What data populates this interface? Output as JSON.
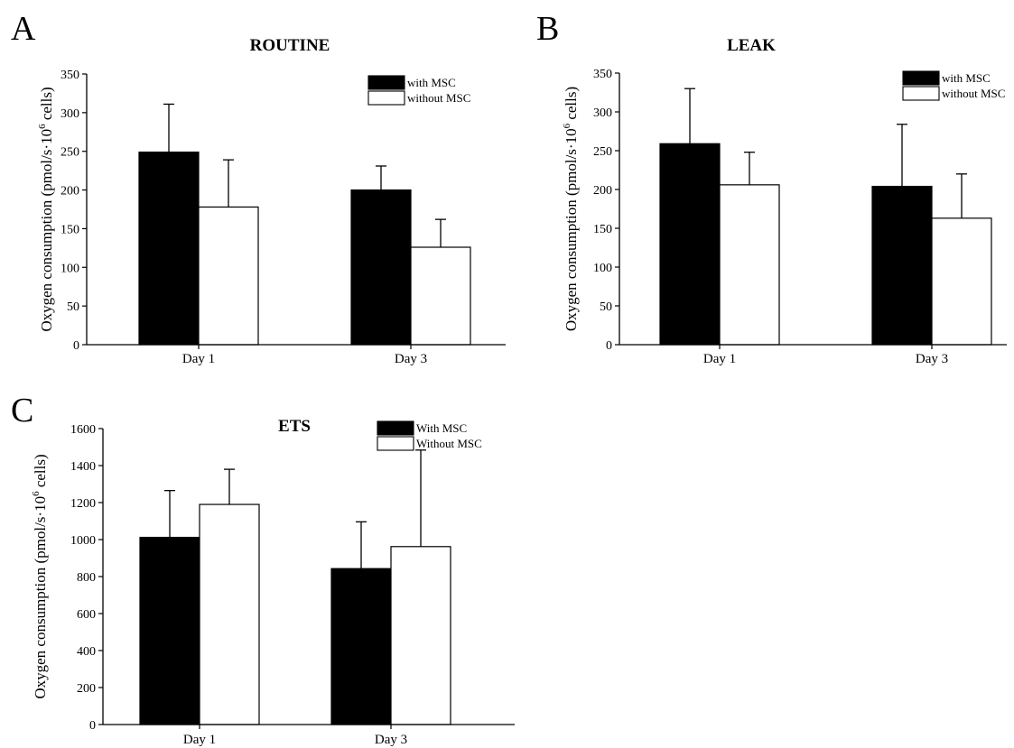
{
  "panels": [
    {
      "letter": "A"
    },
    {
      "letter": "B"
    },
    {
      "letter": "C"
    }
  ],
  "chart_data": [
    {
      "type": "bar",
      "title": "ROUTINE",
      "ylabel_prefix": "Oxygen consumption (pmol/s·10",
      "ylabel_sup": "6",
      "ylabel_suffix": " cells)",
      "categories": [
        "Day 1",
        "Day 3"
      ],
      "ylim": [
        0,
        350
      ],
      "yticks": [
        0,
        50,
        100,
        150,
        200,
        250,
        300,
        350
      ],
      "legend_position": "top-right",
      "series": [
        {
          "name": "with MSC",
          "color": "#000000",
          "values": [
            249,
            200
          ],
          "errors": [
            62,
            31
          ]
        },
        {
          "name": "without MSC",
          "color": "#ffffff",
          "values": [
            178,
            126
          ],
          "errors": [
            61,
            36
          ]
        }
      ]
    },
    {
      "type": "bar",
      "title": "LEAK",
      "ylabel_prefix": "Oxygen consumption (pmol/s·10",
      "ylabel_sup": "6",
      "ylabel_suffix": " cells)",
      "categories": [
        "Day 1",
        "Day 3"
      ],
      "ylim": [
        0,
        350
      ],
      "yticks": [
        0,
        50,
        100,
        150,
        200,
        250,
        300,
        350
      ],
      "legend_position": "top-right",
      "series": [
        {
          "name": "with MSC",
          "color": "#000000",
          "values": [
            259,
            204
          ],
          "errors": [
            71,
            80
          ]
        },
        {
          "name": "without MSC",
          "color": "#ffffff",
          "values": [
            206,
            163
          ],
          "errors": [
            42,
            57
          ]
        }
      ]
    },
    {
      "type": "bar",
      "title": "ETS",
      "ylabel_prefix": "Oxygen consumption (pmol/s·10",
      "ylabel_sup": "6",
      "ylabel_suffix": " cells)",
      "categories": [
        "Day 1",
        "Day 3"
      ],
      "ylim": [
        0,
        1600
      ],
      "yticks": [
        0,
        200,
        400,
        600,
        800,
        1000,
        1200,
        1400,
        1600
      ],
      "legend_position": "top-right",
      "series": [
        {
          "name": "With MSC",
          "color": "#000000",
          "values": [
            1012,
            843
          ],
          "errors": [
            253,
            253
          ]
        },
        {
          "name": "Without MSC",
          "color": "#ffffff",
          "values": [
            1190,
            962
          ],
          "errors": [
            190,
            522
          ]
        }
      ]
    }
  ]
}
